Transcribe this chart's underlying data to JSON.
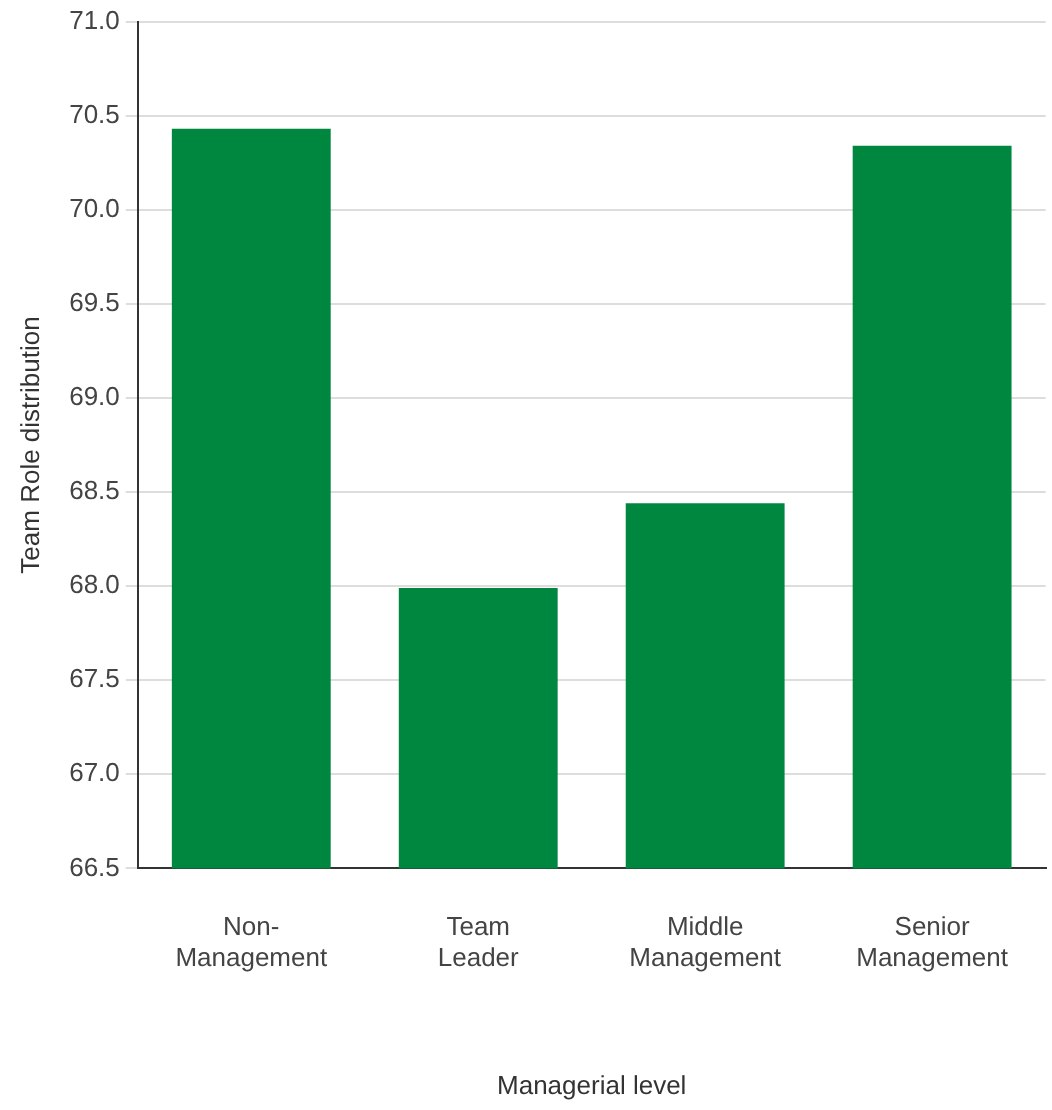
{
  "chart_data": {
    "type": "bar",
    "xlabel": "Managerial level",
    "ylabel": "Team Role distribution",
    "categories": [
      "Non-Management",
      "Team Leader",
      "Middle Management",
      "Senior Management"
    ],
    "values": [
      70.43,
      67.99,
      68.44,
      70.34
    ],
    "color": "#00873f",
    "ylim": [
      66.5,
      71.0
    ],
    "yticks": [
      {
        "value": 66.5,
        "label": "66.5"
      },
      {
        "value": 67,
        "label": "67.0"
      },
      {
        "value": 67.5,
        "label": "67.5"
      },
      {
        "value": 68,
        "label": "68.0"
      },
      {
        "value": 68.5,
        "label": "68.5"
      },
      {
        "value": 69,
        "label": "69.0"
      },
      {
        "value": 69.5,
        "label": "69.5"
      },
      {
        "value": 70,
        "label": "70.0"
      },
      {
        "value": 70.5,
        "label": "70.5"
      },
      {
        "value": 71,
        "label": "71.0"
      }
    ],
    "grid": "y",
    "legend": false
  }
}
